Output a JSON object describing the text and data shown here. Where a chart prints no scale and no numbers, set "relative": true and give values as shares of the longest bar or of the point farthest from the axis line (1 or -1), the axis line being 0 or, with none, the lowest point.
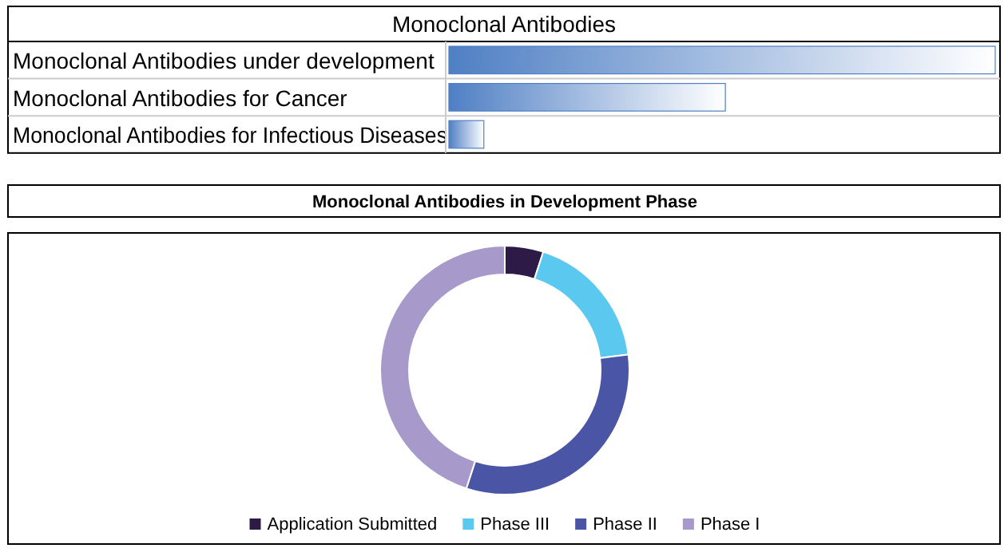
{
  "chart_data": [
    {
      "type": "bar",
      "title": "Monoclonal Antibodies",
      "orientation": "horizontal",
      "relative": true,
      "categories": [
        "Monoclonal Antibodies under development",
        "Monoclonal Antibodies for Cancer",
        "Monoclonal Antibodies for Infectious Diseases"
      ],
      "values": [
        1,
        0.506,
        0.064
      ],
      "color": "#4f7fc4"
    },
    {
      "type": "donut",
      "title": "Monoclonal Antibodies in Development Phase",
      "categories": [
        "Application Submitted",
        "Phase III",
        "Phase II",
        "Phase I"
      ],
      "values": [
        5,
        18,
        32,
        45
      ],
      "colors": [
        "#2e1a47",
        "#5bc8f0",
        "#4b55a5",
        "#a799c9"
      ],
      "legend": "bottom"
    }
  ]
}
